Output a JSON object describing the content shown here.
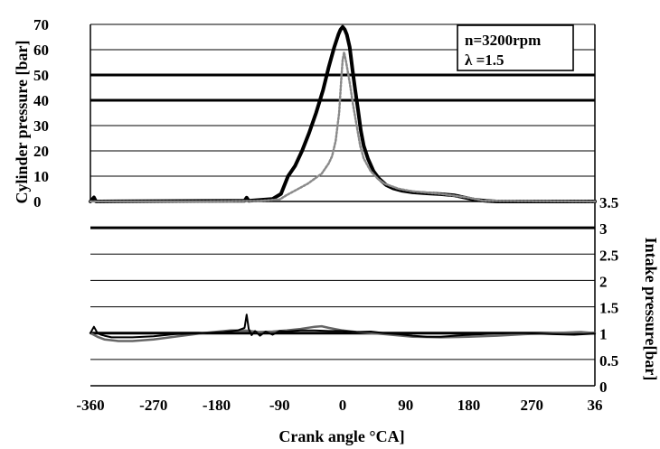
{
  "chart_data": [
    {
      "type": "line",
      "xlabel": "Crank angle °CA]",
      "ylabel": "Cylinder pressure [bar]",
      "xlim": [
        -360,
        360
      ],
      "ylim": [
        0,
        70
      ],
      "x_ticks": [
        "-360",
        "-270",
        "-180",
        "-90",
        "0",
        "90",
        "180",
        "270",
        "36"
      ],
      "y_ticks": [
        "0",
        "10",
        "20",
        "30",
        "40",
        "50",
        "60",
        "70"
      ],
      "grid": true,
      "legend": {
        "placement": "top-right",
        "lines": [
          "n=3200rpm",
          "λ =1.5"
        ]
      },
      "series": [
        {
          "style": "solid-thick",
          "x": [
            -360,
            -355,
            -352,
            -345,
            -200,
            -140,
            -137,
            -134,
            -100,
            -88,
            -78,
            -68,
            -58,
            -48,
            -38,
            -28,
            -20,
            -12,
            -6,
            -3,
            0,
            3,
            6,
            10,
            14,
            18,
            22,
            26,
            30,
            36,
            44,
            52,
            62,
            72,
            85,
            100,
            120,
            140,
            160,
            175,
            190,
            205,
            220,
            260,
            300,
            360
          ],
          "y": [
            0,
            1.6,
            0,
            0,
            0.2,
            0.3,
            1.5,
            0.3,
            1,
            3,
            10,
            14,
            20,
            27,
            35,
            44,
            53,
            61,
            66,
            68,
            69,
            68,
            66,
            61,
            52,
            44,
            36,
            28,
            22,
            17,
            12,
            9,
            6.5,
            5.2,
            4.2,
            3.6,
            3.2,
            2.9,
            2.4,
            1.5,
            0.6,
            0.2,
            0,
            0,
            0,
            0
          ]
        },
        {
          "style": "dotted",
          "x": [
            -360,
            -200,
            -120,
            -90,
            -80,
            -70,
            -60,
            -50,
            -40,
            -30,
            -20,
            -15,
            -10,
            -5,
            -2,
            0,
            2,
            5,
            10,
            15,
            20,
            25,
            30,
            40,
            50,
            60,
            80,
            100,
            140,
            180,
            200,
            360
          ],
          "y": [
            0,
            0,
            0.2,
            0.8,
            2.5,
            4,
            5.5,
            7,
            9,
            11,
            15,
            18,
            24,
            35,
            48,
            56,
            59,
            55,
            47,
            38,
            30,
            22,
            17,
            12,
            9,
            7,
            5,
            4,
            3,
            1.5,
            0.3,
            0
          ]
        }
      ]
    },
    {
      "type": "line",
      "xlabel": "Crank angle °CA]",
      "ylabel": "Intake pressure[bar]",
      "xlim": [
        -360,
        360
      ],
      "ylim": [
        0,
        3.5
      ],
      "y_ticks": [
        "0",
        "0.5",
        "1",
        "1.5",
        "2",
        "2.5",
        "3",
        "3.5"
      ],
      "grid": true,
      "series": [
        {
          "style": "gray",
          "x": [
            -360,
            -350,
            -340,
            -320,
            -300,
            -270,
            -240,
            -200,
            -160,
            -140,
            -120,
            -100,
            -80,
            -60,
            -40,
            -30,
            -20,
            0,
            20,
            60,
            100,
            140,
            180,
            220,
            260,
            300,
            340,
            360
          ],
          "y": [
            1.0,
            0.93,
            0.88,
            0.85,
            0.85,
            0.88,
            0.93,
            1.0,
            1.05,
            1.05,
            1.02,
            1.03,
            1.05,
            1.08,
            1.12,
            1.13,
            1.1,
            1.05,
            1.02,
            0.98,
            0.93,
            0.92,
            0.93,
            0.95,
            0.98,
            1.0,
            1.02,
            1.0
          ]
        },
        {
          "style": "solid",
          "x": [
            -360,
            -355,
            -350,
            -345,
            -340,
            -330,
            -300,
            -270,
            -240,
            -200,
            -170,
            -150,
            -140,
            -137,
            -134,
            -130,
            -125,
            -118,
            -110,
            -100,
            -90,
            -80,
            -60,
            -40,
            -20,
            0,
            20,
            40,
            60,
            80,
            100,
            120,
            140,
            160,
            180,
            200,
            220,
            260,
            300,
            330,
            360
          ],
          "y": [
            1.0,
            1.12,
            1.0,
            0.97,
            0.95,
            0.92,
            0.92,
            0.94,
            0.98,
            1.0,
            1.02,
            1.05,
            1.1,
            1.35,
            1.08,
            0.96,
            1.04,
            0.95,
            1.03,
            0.97,
            1.04,
            1.03,
            1.05,
            1.05,
            1.04,
            1.04,
            1.02,
            1.03,
            1.0,
            0.98,
            0.95,
            0.93,
            0.93,
            0.95,
            0.97,
            0.98,
            1.0,
            1.0,
            0.98,
            0.97,
            0.99
          ]
        }
      ]
    }
  ]
}
